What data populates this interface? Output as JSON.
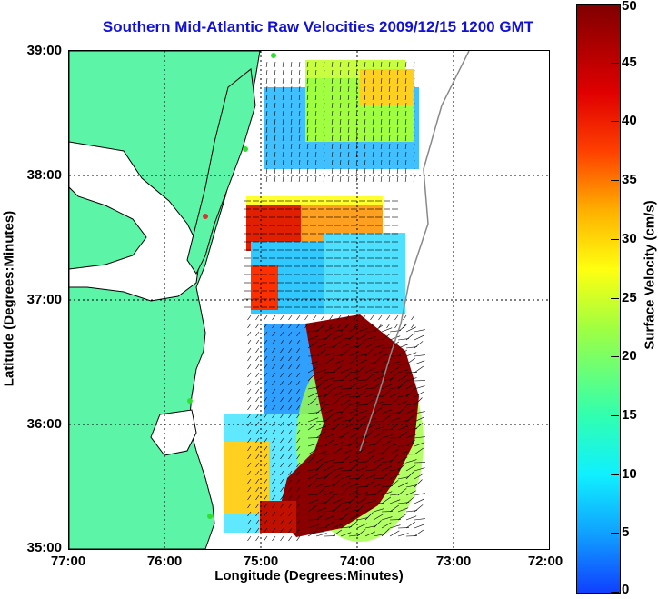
{
  "title": "Southern Mid-Atlantic Raw Velocities 2009/12/15 1200 GMT",
  "xlabel": "Longitude (Degrees:Minutes)",
  "ylabel": "Latitude (Degrees:Minutes)",
  "x_ticks": [
    "77:00",
    "76:00",
    "75:00",
    "74:00",
    "73:00",
    "72:00"
  ],
  "y_ticks": [
    "39:00",
    "38:00",
    "37:00",
    "36:00",
    "35:00"
  ],
  "colorbar": {
    "label": "Surface Velocity (cm/s)",
    "ticks": [
      "50",
      "45",
      "40",
      "35",
      "30",
      "25",
      "20",
      "15",
      "10",
      "5",
      "0"
    ],
    "range": [
      0,
      50
    ]
  },
  "colors": {
    "land": "#5cf5a8",
    "coast": "#000000",
    "title": "#1010d8"
  }
}
